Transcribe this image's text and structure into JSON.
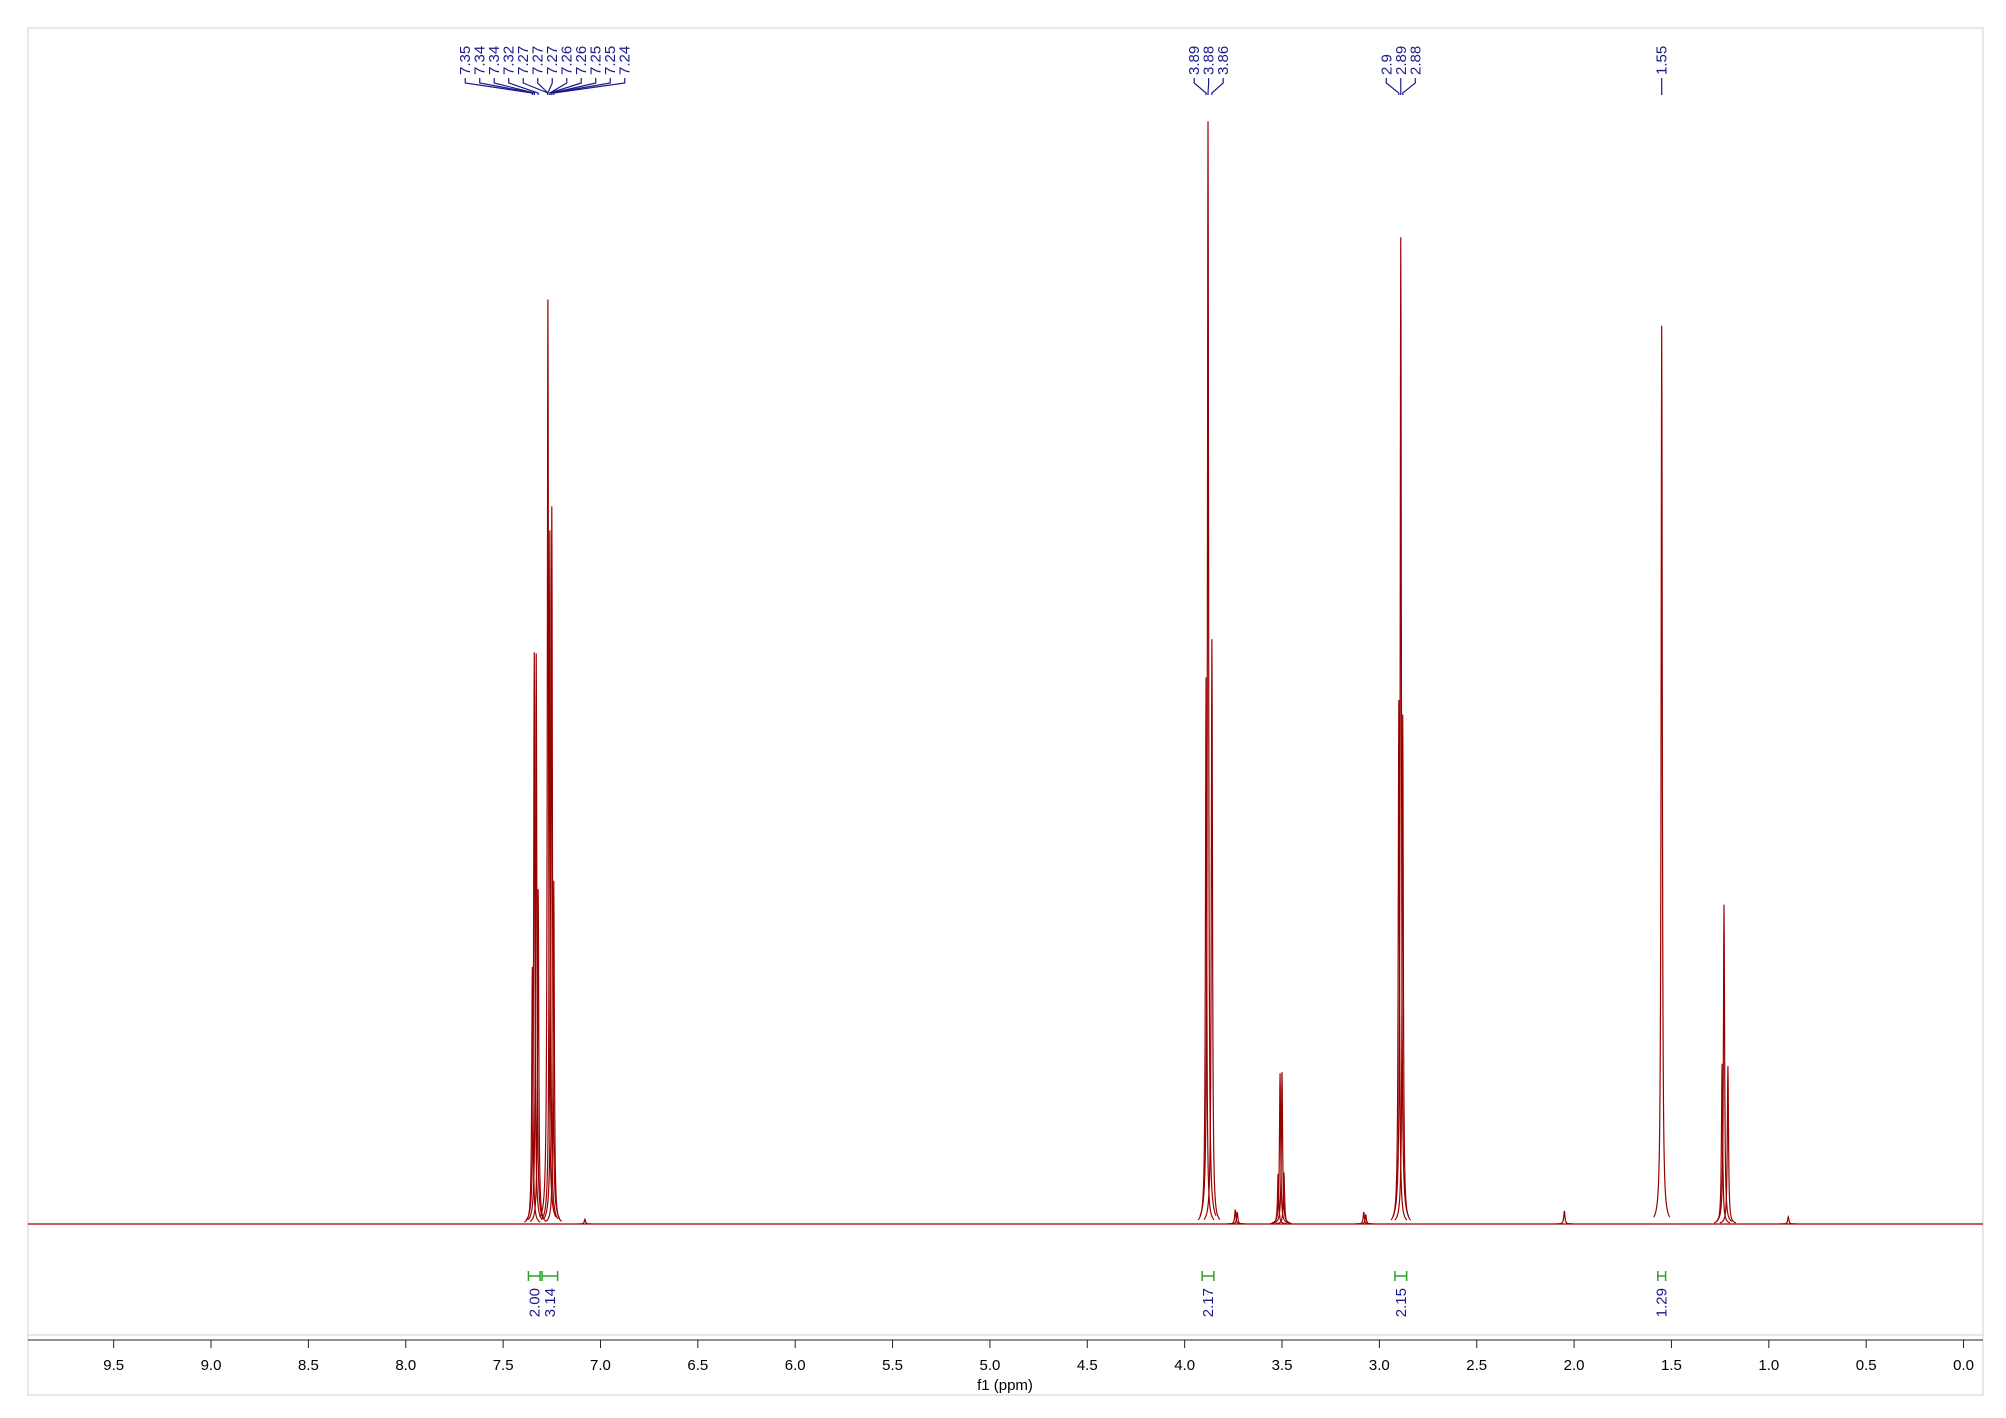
{
  "chart_data": {
    "type": "nmr",
    "x_label": "f1 (ppm)",
    "xlim": [
      9.94,
      -0.1
    ],
    "ylim": [
      0,
      100
    ],
    "xticks": [
      9.5,
      {
        "value": 9,
        "label": "9.0"
      },
      8.5,
      {
        "value": 8,
        "label": "8.0"
      },
      7.5,
      {
        "value": 7,
        "label": "7.0"
      },
      6.5,
      {
        "value": 6,
        "label": "6.0"
      },
      5.5,
      {
        "value": 5,
        "label": "5.0"
      },
      4.5,
      {
        "value": 4,
        "label": "4.0"
      },
      3.5,
      {
        "value": 3,
        "label": "3.0"
      },
      2.5,
      {
        "value": 2,
        "label": "2.0"
      },
      1.5,
      {
        "value": 1,
        "label": "1.0"
      },
      0.5,
      {
        "value": 0,
        "label": "0.0"
      }
    ],
    "color": "#990000",
    "x": [
      7.35,
      7.34,
      7.33,
      7.32,
      7.27,
      7.26,
      7.25,
      7.24,
      7.08,
      3.89,
      3.88,
      3.86,
      3.74,
      3.73,
      3.52,
      3.51,
      3.5,
      3.49,
      3.08,
      3.07,
      2.9,
      2.89,
      2.88,
      2.05,
      1.55,
      1.24,
      1.23,
      1.21,
      0.9
    ],
    "values": [
      21.5,
      47.8,
      47.7,
      28,
      77.3,
      58,
      60,
      28.7,
      0.4,
      45.7,
      92.2,
      48.9,
      1.2,
      1.0,
      4.2,
      12.6,
      12.7,
      4.3,
      1.0,
      0.8,
      43.8,
      82.5,
      42.6,
      1.1,
      75.1,
      13.4,
      26.7,
      13.2,
      0.6
    ],
    "peak_labels": [
      [
        7.35,
        7.34,
        7.34,
        7.32,
        7.27,
        7.27,
        7.27,
        7.26,
        7.26,
        7.25,
        7.25,
        7.24
      ],
      [
        3.89,
        3.88,
        3.86
      ],
      [
        2.9,
        2.89,
        2.88
      ],
      [
        1.55
      ]
    ],
    "integrals": [
      {
        "range": [
          7.37,
          7.31
        ],
        "value": 2,
        "label": "2.00"
      },
      {
        "range": [
          7.3,
          7.22
        ],
        "value": 3.14,
        "label": "3.14"
      },
      {
        "range": [
          3.91,
          3.85
        ],
        "value": 2.17,
        "label": "2.17"
      },
      {
        "range": [
          2.92,
          2.86
        ],
        "value": 2.15,
        "label": "2.15"
      },
      {
        "range": [
          1.57,
          1.53
        ],
        "value": 1.29,
        "label": "1.29"
      }
    ]
  }
}
